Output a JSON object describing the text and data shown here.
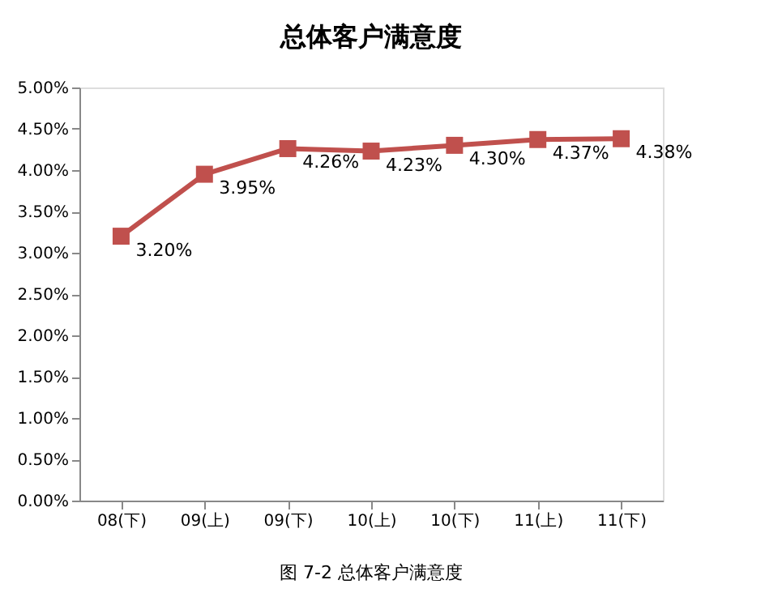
{
  "chart_data": {
    "type": "line",
    "title": "总体客户满意度",
    "categories": [
      "08(下)",
      "09(上)",
      "09(下)",
      "10(上)",
      "10(下)",
      "11(上)",
      "11(下)"
    ],
    "series": [
      {
        "color": "#c0504d",
        "values": [
          3.2,
          3.95,
          4.26,
          4.23,
          4.3,
          4.37,
          4.38
        ],
        "value_labels": [
          "3.20%",
          "3.95%",
          "4.26%",
          "4.23%",
          "4.30%",
          "4.37%",
          "4.38%"
        ]
      }
    ],
    "ylim": [
      0,
      5
    ],
    "yticks": [
      {
        "value": 0,
        "label": "0.00%"
      },
      {
        "value": 0.5,
        "label": "0.50%"
      },
      {
        "value": 1,
        "label": "1.00%"
      },
      {
        "value": 1.5,
        "label": "1.50%"
      },
      {
        "value": 2,
        "label": "2.00%"
      },
      {
        "value": 2.5,
        "label": "2.50%"
      },
      {
        "value": 3,
        "label": "3.00%"
      },
      {
        "value": 3.5,
        "label": "3.50%"
      },
      {
        "value": 4,
        "label": "4.00%"
      },
      {
        "value": 4.5,
        "label": "4.50%"
      },
      {
        "value": 5,
        "label": "5.00%"
      }
    ],
    "marker": "square",
    "line_style": "solid",
    "grid": false,
    "annotations": [
      "图 7-2 总体客户满意度"
    ]
  }
}
